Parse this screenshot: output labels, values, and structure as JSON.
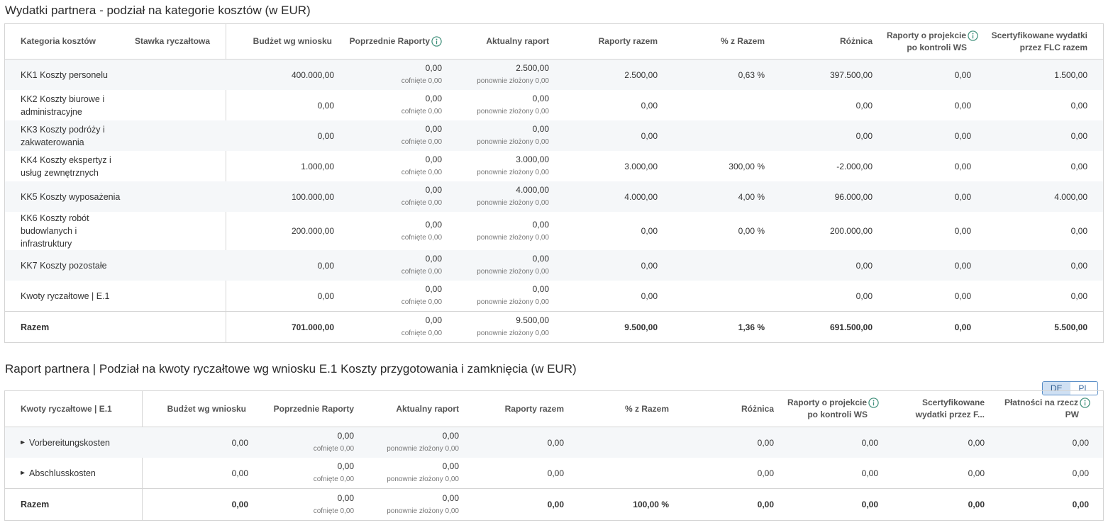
{
  "section1": {
    "title": "Wydatki partnera - podział na kategorie kosztów (w EUR)",
    "headers": {
      "category": "Kategoria kosztów",
      "flat_rate": "Stawka ryczałtowa",
      "budget": "Budżet wg wniosku",
      "previous": "Poprzednie Raporty",
      "current": "Aktualny raport",
      "total_reports": "Raporty razem",
      "percent": "% z Razem",
      "difference": "Różnica",
      "after_control_1": "Raporty o projekcie",
      "after_control_2": "po kontroli WS",
      "certified_1": "Scertyfikowane wydatki",
      "certified_2": "przez FLC razem"
    },
    "rows": [
      {
        "name_1": "KK1 Koszty personelu",
        "name_2": "",
        "name_3": "",
        "budget": "400.000,00",
        "prev": "0,00",
        "prev_sub": "cofnięte 0,00",
        "cur": "2.500,00",
        "cur_sub": "ponownie złożony 0,00",
        "total": "2.500,00",
        "pct": "0,63 %",
        "diff": "397.500,00",
        "after": "0,00",
        "cert": "1.500,00"
      },
      {
        "name_1": "KK2 Koszty biurowe i",
        "name_2": "administracyjne",
        "name_3": "",
        "budget": "0,00",
        "prev": "0,00",
        "prev_sub": "cofnięte 0,00",
        "cur": "0,00",
        "cur_sub": "ponownie złożony 0,00",
        "total": "0,00",
        "pct": "",
        "diff": "0,00",
        "after": "0,00",
        "cert": "0,00"
      },
      {
        "name_1": "KK3 Koszty podróży i",
        "name_2": "zakwaterowania",
        "name_3": "",
        "budget": "0,00",
        "prev": "0,00",
        "prev_sub": "cofnięte 0,00",
        "cur": "0,00",
        "cur_sub": "ponownie złożony 0,00",
        "total": "0,00",
        "pct": "",
        "diff": "0,00",
        "after": "0,00",
        "cert": "0,00"
      },
      {
        "name_1": "KK4 Koszty ekspertyz i",
        "name_2": "usług zewnętrznych",
        "name_3": "",
        "budget": "1.000,00",
        "prev": "0,00",
        "prev_sub": "cofnięte 0,00",
        "cur": "3.000,00",
        "cur_sub": "ponownie złożony 0,00",
        "total": "3.000,00",
        "pct": "300,00 %",
        "diff": "-2.000,00",
        "after": "0,00",
        "cert": "0,00"
      },
      {
        "name_1": "KK5 Koszty wyposażenia",
        "name_2": "",
        "name_3": "",
        "budget": "100.000,00",
        "prev": "0,00",
        "prev_sub": "cofnięte 0,00",
        "cur": "4.000,00",
        "cur_sub": "ponownie złożony 0,00",
        "total": "4.000,00",
        "pct": "4,00 %",
        "diff": "96.000,00",
        "after": "0,00",
        "cert": "4.000,00"
      },
      {
        "name_1": "KK6 Koszty robót",
        "name_2": "budowlanych i",
        "name_3": "infrastruktury",
        "budget": "200.000,00",
        "prev": "0,00",
        "prev_sub": "cofnięte 0,00",
        "cur": "0,00",
        "cur_sub": "ponownie złożony 0,00",
        "total": "0,00",
        "pct": "0,00 %",
        "diff": "200.000,00",
        "after": "0,00",
        "cert": "0,00"
      },
      {
        "name_1": "KK7 Koszty pozostałe",
        "name_2": "",
        "name_3": "",
        "budget": "0,00",
        "prev": "0,00",
        "prev_sub": "cofnięte 0,00",
        "cur": "0,00",
        "cur_sub": "ponownie złożony 0,00",
        "total": "0,00",
        "pct": "",
        "diff": "0,00",
        "after": "0,00",
        "cert": "0,00"
      },
      {
        "name_1": "Kwoty ryczałtowe | E.1",
        "name_2": "",
        "name_3": "",
        "budget": "0,00",
        "prev": "0,00",
        "prev_sub": "cofnięte 0,00",
        "cur": "0,00",
        "cur_sub": "ponownie złożony 0,00",
        "total": "0,00",
        "pct": "",
        "diff": "0,00",
        "after": "0,00",
        "cert": "0,00"
      }
    ],
    "total": {
      "name": "Razem",
      "budget": "701.000,00",
      "prev": "0,00",
      "prev_sub": "cofnięte 0,00",
      "cur": "9.500,00",
      "cur_sub": "ponownie złożony 0,00",
      "total": "9.500,00",
      "pct": "1,36 %",
      "diff": "691.500,00",
      "after": "0,00",
      "cert": "5.500,00"
    }
  },
  "section2": {
    "title": "Raport partnera | Podział na kwoty ryczałtowe wg wniosku E.1 Koszty przygotowania i zamknięcia (w EUR)",
    "lang_toggle": {
      "de": "DE",
      "pl": "PL",
      "active": "DE"
    },
    "headers": {
      "lump": "Kwoty ryczałtowe | E.1",
      "budget": "Budżet wg wniosku",
      "previous": "Poprzednie Raporty",
      "current": "Aktualny raport",
      "total_reports": "Raporty razem",
      "percent": "% z Razem",
      "difference": "Różnica",
      "after_control_1": "Raporty o projekcie",
      "after_control_2": "po kontroli WS",
      "certified_1": "Scertyfikowane",
      "certified_2": "wydatki przez F...",
      "payments_1": "Płatności na rzecz",
      "payments_2": "PW"
    },
    "rows": [
      {
        "name": "Vorbereitungskosten",
        "budget": "0,00",
        "prev": "0,00",
        "prev_sub": "cofnięte 0,00",
        "cur": "0,00",
        "cur_sub": "ponownie złożony 0,00",
        "total": "0,00",
        "pct": "",
        "diff": "0,00",
        "after": "0,00",
        "cert": "0,00",
        "pay": "0,00"
      },
      {
        "name": "Abschlusskosten",
        "budget": "0,00",
        "prev": "0,00",
        "prev_sub": "cofnięte 0,00",
        "cur": "0,00",
        "cur_sub": "ponownie złożony 0,00",
        "total": "0,00",
        "pct": "",
        "diff": "0,00",
        "after": "0,00",
        "cert": "0,00",
        "pay": "0,00"
      }
    ],
    "total": {
      "name": "Razem",
      "budget": "0,00",
      "prev": "0,00",
      "prev_sub": "cofnięte 0,00",
      "cur": "0,00",
      "cur_sub": "ponownie złożony 0,00",
      "total": "0,00",
      "pct": "100,00 %",
      "diff": "0,00",
      "after": "0,00",
      "cert": "0,00",
      "pay": "0,00"
    }
  }
}
